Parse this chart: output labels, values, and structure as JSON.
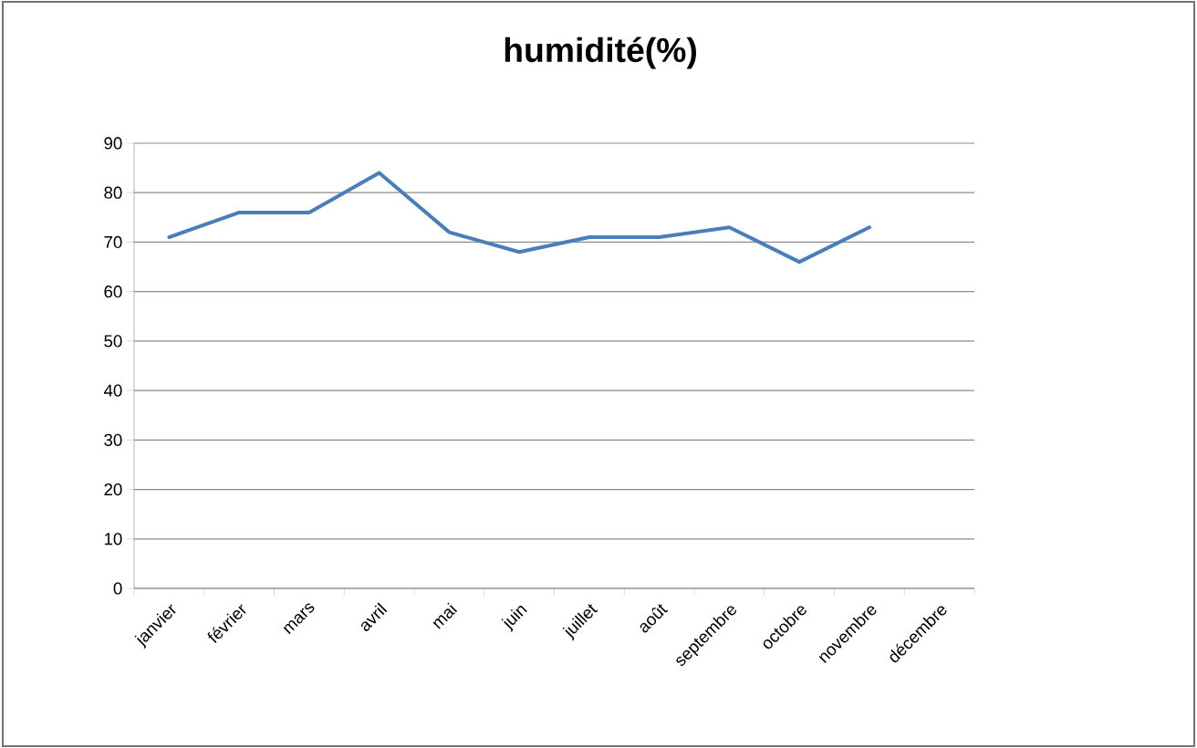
{
  "chart_data": {
    "type": "line",
    "title": "**humidité(%)**",
    "categories": [
      "janvier",
      "février",
      "mars",
      "avril",
      "mai",
      "juin",
      "juillet",
      "août",
      "septembre",
      "octobre",
      "novembre",
      "décembre"
    ],
    "values": [
      71,
      76,
      76,
      84,
      72,
      68,
      71,
      71,
      73,
      66,
      73,
      null
    ],
    "color": "#4a7ebb",
    "ylim": [
      0,
      90
    ],
    "yticks": [
      0,
      10,
      20,
      30,
      40,
      50,
      60,
      70,
      80,
      90
    ],
    "grid": "y",
    "line_style": "solid",
    "marker": "none"
  }
}
